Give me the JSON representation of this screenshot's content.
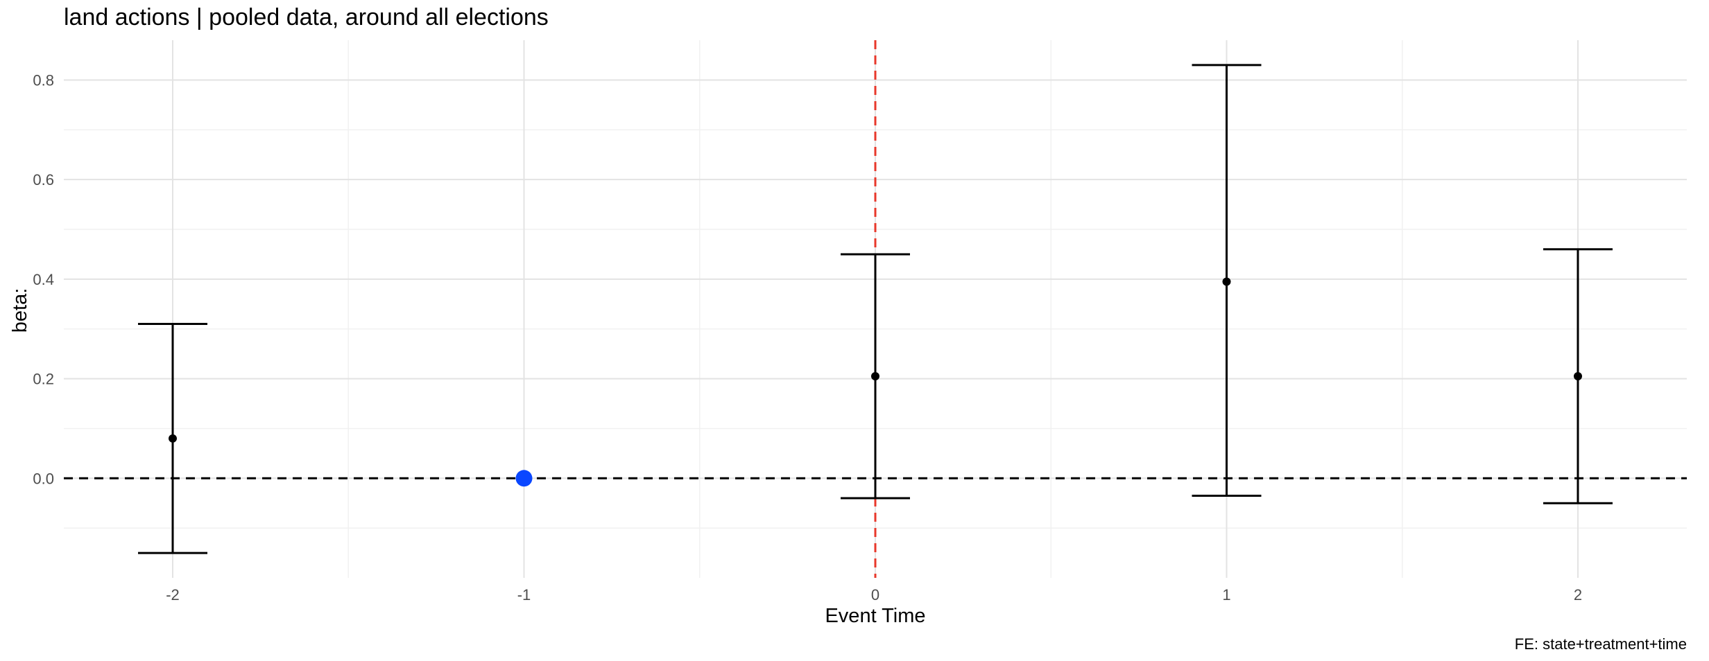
{
  "chart_data": {
    "type": "scatter",
    "title": "land actions | pooled data, around all elections",
    "xlabel": "Event Time",
    "ylabel": "beta:",
    "caption": "FE: state+treatment+time",
    "x_ticks": [
      -2,
      -1,
      0,
      1,
      2
    ],
    "y_ticks": [
      0.0,
      0.2,
      0.4,
      0.6,
      0.8
    ],
    "y_tick_labels": [
      "0.0",
      "0.2",
      "0.4",
      "0.6",
      "0.8"
    ],
    "xlim": [
      -2.31,
      2.31
    ],
    "ylim": [
      -0.2,
      0.88
    ],
    "grid": true,
    "reference_lines": {
      "horizontal_y": 0,
      "vertical_x": 0
    },
    "points": [
      {
        "x": -2,
        "y": 0.08,
        "lower": -0.15,
        "upper": 0.31
      },
      {
        "x": -1,
        "y": 0.0,
        "reference": true
      },
      {
        "x": 0,
        "y": 0.205,
        "lower": -0.04,
        "upper": 0.45
      },
      {
        "x": 1,
        "y": 0.395,
        "lower": -0.035,
        "upper": 0.83
      },
      {
        "x": 2,
        "y": 0.205,
        "lower": -0.05,
        "upper": 0.46
      }
    ],
    "colors": {
      "point": "#000000",
      "reference_point": "#0a47ff",
      "vertical_line": "#e8382b",
      "horizontal_line": "#000000"
    }
  }
}
